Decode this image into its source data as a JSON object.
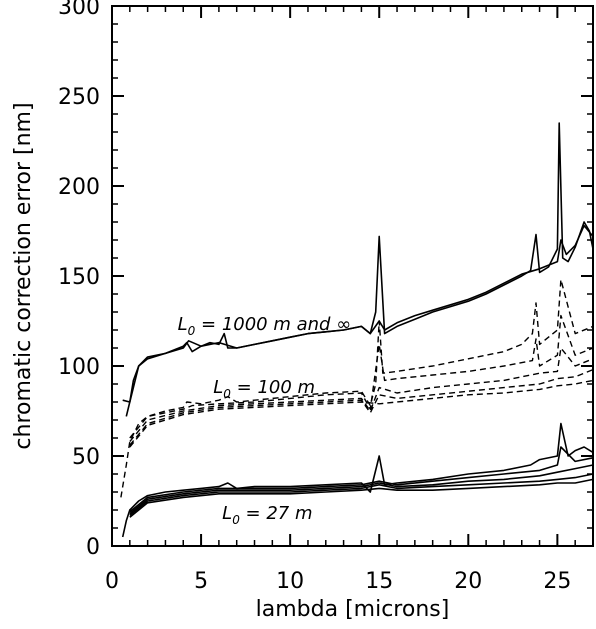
{
  "chart_data": {
    "type": "line",
    "title": "",
    "xlabel": "lambda [microns]",
    "ylabel": "chromatic correction error [nm]",
    "xlim": [
      0,
      27
    ],
    "ylim": [
      0,
      300
    ],
    "xticks": [
      0,
      5,
      10,
      15,
      20,
      25
    ],
    "xtick_labels": [
      "0",
      "5",
      "10",
      "15",
      "20",
      "25"
    ],
    "yticks": [
      0,
      50,
      100,
      150,
      200,
      250,
      300
    ],
    "ytick_labels": [
      "0",
      "50",
      "100",
      "150",
      "200",
      "250",
      "300"
    ],
    "grid": false,
    "legend": "none",
    "annotations": [
      {
        "text": "L",
        "sub": "0",
        "rest": " = 1000 m and ∞",
        "x": 2,
        "y": 120
      },
      {
        "text": "L",
        "sub": "0",
        "rest": " = 100 m",
        "x": 4,
        "y": 85
      },
      {
        "text": "L",
        "sub": "0",
        "rest": " = 27 m",
        "x": 4.5,
        "y": 15
      }
    ],
    "series": [
      {
        "style": "solid",
        "x": [
          0.6,
          1,
          1.5,
          2,
          3,
          4,
          4.2,
          4.5,
          5,
          5.5,
          6,
          6.3,
          6.5,
          7,
          8,
          9,
          10,
          11,
          12,
          13,
          14,
          14.5,
          14.8,
          15,
          15.3,
          16,
          17,
          18,
          19,
          20,
          21,
          22,
          23,
          23.5,
          23.8,
          24,
          24.5,
          25,
          25.1,
          25.3,
          25.6,
          26,
          26.5,
          26.8,
          27
        ],
        "y": [
          81,
          80,
          100,
          105,
          107,
          111,
          113,
          108,
          111,
          113,
          112,
          118,
          110,
          110,
          112,
          114,
          116,
          118,
          119,
          120,
          122,
          118,
          130,
          172,
          118,
          122,
          126,
          130,
          133,
          136,
          140,
          145,
          150,
          153,
          173,
          152,
          155,
          165,
          235,
          160,
          158,
          166,
          180,
          175,
          165
        ]
      },
      {
        "style": "solid",
        "x": [
          0.8,
          1,
          1.2,
          1.5,
          2,
          3,
          4,
          4.3,
          5,
          6,
          7,
          8,
          9,
          10,
          11,
          12,
          13,
          14,
          14.5,
          15,
          15.3,
          16,
          17,
          18,
          19,
          20,
          21,
          22,
          23,
          24,
          25,
          25.2,
          25.5,
          26,
          26.5,
          27
        ],
        "y": [
          72,
          80,
          92,
          100,
          104,
          107,
          110,
          114,
          111,
          113,
          110,
          112,
          114,
          116,
          118,
          119,
          120,
          122,
          118,
          125,
          120,
          124,
          128,
          131,
          134,
          137,
          141,
          146,
          151,
          154,
          158,
          170,
          162,
          167,
          178,
          172
        ]
      },
      {
        "style": "dashed",
        "x": [
          0.5,
          0.8,
          1,
          1.5,
          2,
          3,
          4,
          4.2,
          5,
          5.5,
          6,
          6.5,
          7,
          8,
          10,
          12,
          14,
          14.5,
          14.8,
          15,
          15.2,
          16,
          18,
          20,
          22,
          23,
          23.6,
          23.8,
          24,
          25,
          25.2,
          26,
          27
        ],
        "y": [
          27,
          45,
          58,
          68,
          72,
          75,
          77,
          80,
          79,
          80,
          81,
          83,
          80,
          81,
          83,
          85,
          86,
          78,
          90,
          125,
          96,
          97,
          100,
          104,
          108,
          112,
          118,
          135,
          112,
          120,
          148,
          118,
          122
        ]
      },
      {
        "style": "dashed",
        "x": [
          1,
          2,
          4,
          4.5,
          6,
          8,
          10,
          12,
          14,
          14.5,
          15,
          15.3,
          16,
          18,
          20,
          22,
          23.6,
          23.8,
          24,
          25,
          25.2,
          26,
          27
        ],
        "y": [
          60,
          72,
          76,
          78,
          79,
          80,
          82,
          84,
          85,
          76,
          112,
          92,
          93,
          95,
          97,
          100,
          103,
          115,
          100,
          106,
          128,
          106,
          110
        ]
      },
      {
        "style": "dashed",
        "x": [
          1,
          2,
          4,
          6,
          8,
          10,
          12,
          14,
          14.5,
          15,
          16,
          18,
          20,
          22,
          24,
          25,
          25.2,
          26,
          27
        ],
        "y": [
          58,
          70,
          75,
          78,
          79,
          80,
          81,
          82,
          75,
          88,
          85,
          88,
          90,
          92,
          96,
          97,
          110,
          100,
          104
        ]
      },
      {
        "style": "dashed",
        "x": [
          1,
          2,
          4,
          6,
          8,
          10,
          12,
          14,
          14.5,
          15,
          16,
          18,
          20,
          22,
          24,
          25,
          26,
          27
        ],
        "y": [
          56,
          68,
          74,
          77,
          78,
          79,
          80,
          81,
          74,
          84,
          82,
          84,
          86,
          88,
          90,
          93,
          94,
          98
        ]
      },
      {
        "style": "dashed",
        "x": [
          1,
          2,
          4,
          6,
          8,
          10,
          12,
          14,
          15,
          16,
          18,
          20,
          22,
          24,
          25,
          26,
          27
        ],
        "y": [
          55,
          67,
          73,
          76,
          77,
          78,
          79,
          80,
          79,
          80,
          82,
          84,
          85,
          87,
          89,
          90,
          92
        ]
      },
      {
        "style": "solid",
        "x": [
          0.6,
          0.8,
          1,
          1.5,
          2,
          3,
          4,
          5,
          6,
          6.5,
          7,
          8,
          10,
          12,
          14,
          14.5,
          15,
          15.3,
          16,
          18,
          20,
          22,
          23.5,
          24,
          25,
          25.2,
          25.6,
          26,
          26.5,
          27
        ],
        "y": [
          5,
          14,
          20,
          25,
          28,
          30,
          31,
          32,
          33,
          35,
          32,
          33,
          33,
          34,
          35,
          30,
          50,
          34,
          35,
          37,
          40,
          42,
          45,
          48,
          50,
          68,
          50,
          53,
          55,
          52
        ]
      },
      {
        "style": "solid",
        "x": [
          1,
          2,
          4,
          6,
          8,
          10,
          12,
          14,
          15,
          16,
          18,
          20,
          22,
          24,
          25,
          25.2,
          26,
          27
        ],
        "y": [
          19,
          27,
          30,
          32,
          32,
          32,
          33,
          34,
          36,
          34,
          36,
          38,
          40,
          42,
          45,
          55,
          47,
          49
        ]
      },
      {
        "style": "solid",
        "x": [
          1,
          2,
          4,
          6,
          8,
          10,
          12,
          14,
          15,
          16,
          18,
          20,
          22,
          24,
          25,
          26,
          27
        ],
        "y": [
          18,
          26,
          29,
          31,
          31,
          31,
          32,
          33,
          35,
          33,
          34,
          36,
          37,
          39,
          41,
          43,
          45
        ]
      },
      {
        "style": "solid",
        "x": [
          1,
          2,
          4,
          6,
          8,
          10,
          12,
          14,
          15,
          16,
          18,
          20,
          22,
          24,
          25,
          26,
          27
        ],
        "y": [
          17,
          25,
          28,
          30,
          30,
          30,
          31,
          32,
          34,
          32,
          33,
          34,
          35,
          36,
          37,
          38,
          40
        ]
      },
      {
        "style": "solid",
        "x": [
          1,
          2,
          4,
          6,
          8,
          10,
          12,
          14,
          15,
          16,
          18,
          20,
          22,
          24,
          25,
          26,
          27
        ],
        "y": [
          16,
          24,
          27,
          29,
          29,
          29,
          30,
          31,
          32,
          31,
          31,
          32,
          33,
          34,
          35,
          35,
          37
        ]
      }
    ]
  }
}
